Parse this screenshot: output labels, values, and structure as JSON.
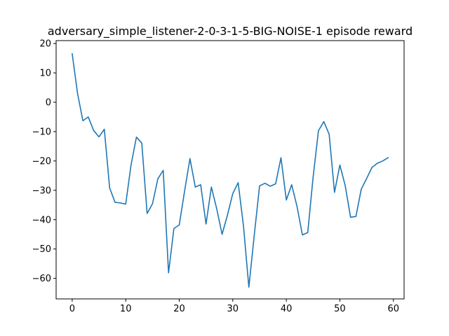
{
  "chart_data": {
    "type": "line",
    "title": "adversary_simple_listener-2-0-3-1-5-BIG-NOISE-1 episode reward",
    "xlabel": "",
    "ylabel": "",
    "xlim": [
      -3,
      62
    ],
    "ylim": [
      -67,
      21
    ],
    "xticks": [
      0,
      10,
      20,
      30,
      40,
      50,
      60
    ],
    "yticks": [
      -60,
      -50,
      -40,
      -30,
      -20,
      -10,
      0,
      10,
      20
    ],
    "grid": false,
    "legend": "none",
    "series": [
      {
        "color": "#1f77b4",
        "x": [
          0,
          1,
          2,
          3,
          4,
          5,
          6,
          7,
          8,
          9,
          10,
          11,
          12,
          13,
          14,
          15,
          16,
          17,
          18,
          19,
          20,
          21,
          22,
          23,
          24,
          25,
          26,
          27,
          28,
          29,
          30,
          31,
          32,
          33,
          34,
          35,
          36,
          37,
          38,
          39,
          40,
          41,
          42,
          43,
          44,
          45,
          46,
          47,
          48,
          49,
          50,
          51,
          52,
          53,
          54,
          55,
          56,
          57,
          58,
          59
        ],
        "y": [
          16.5,
          3.0,
          -6.3,
          -5.0,
          -9.6,
          -11.8,
          -9.2,
          -29.2,
          -34.1,
          -34.3,
          -34.7,
          -21.3,
          -11.9,
          -13.9,
          -37.9,
          -34.6,
          -26.1,
          -23.2,
          -58.1,
          -43.0,
          -41.8,
          -30.2,
          -19.2,
          -28.9,
          -28.1,
          -41.5,
          -28.9,
          -36.3,
          -45.0,
          -38.5,
          -31.1,
          -27.4,
          -42.2,
          -63.0,
          -45.5,
          -28.5,
          -27.6,
          -28.6,
          -27.8,
          -18.9,
          -33.3,
          -28.1,
          -35.5,
          -45.2,
          -44.4,
          -25.6,
          -9.7,
          -6.6,
          -10.9,
          -30.7,
          -21.4,
          -28.4,
          -39.2,
          -38.9,
          -29.6,
          -26.0,
          -22.2,
          -20.8,
          -20.0,
          -18.9
        ]
      }
    ]
  }
}
